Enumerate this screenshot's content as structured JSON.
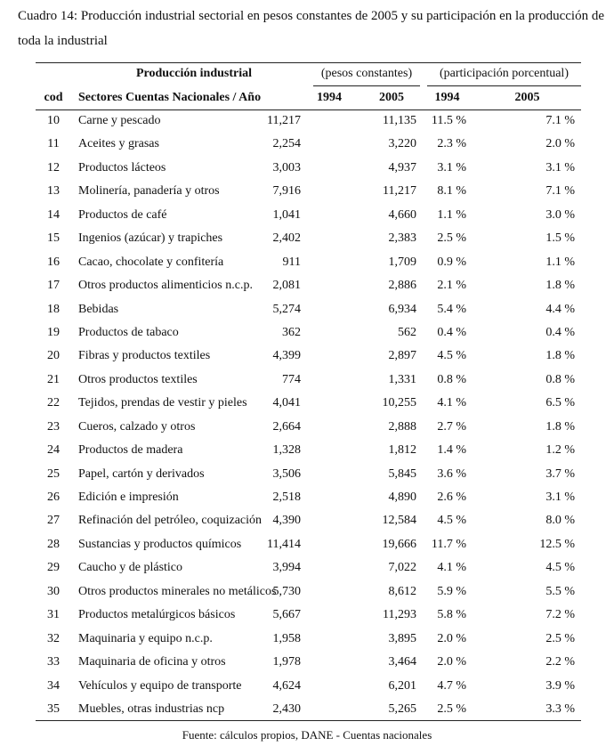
{
  "caption": "Cuadro 14: Producción industrial sectorial en pesos constantes de 2005 y su participación en la producción de toda la industrial",
  "table": {
    "group_headers": [
      "Producción industrial",
      "(pesos constantes)",
      "(participación porcentual)"
    ],
    "headers": [
      "cod",
      "Sectores Cuentas Nacionales / Año",
      "1994",
      "2005",
      "1994",
      "2005"
    ],
    "rows": [
      [
        "10",
        "Carne y pescado",
        "11,217",
        "11,135",
        "11.5 %",
        "7.1 %"
      ],
      [
        "11",
        "Aceites y grasas",
        "2,254",
        "3,220",
        "2.3 %",
        "2.0 %"
      ],
      [
        "12",
        "Productos lácteos",
        "3,003",
        "4,937",
        "3.1 %",
        "3.1 %"
      ],
      [
        "13",
        "Molinería, panadería y otros",
        "7,916",
        "11,217",
        "8.1 %",
        "7.1 %"
      ],
      [
        "14",
        "Productos de café",
        "1,041",
        "4,660",
        "1.1 %",
        "3.0 %"
      ],
      [
        "15",
        "Ingenios (azúcar) y trapiches",
        "2,402",
        "2,383",
        "2.5 %",
        "1.5 %"
      ],
      [
        "16",
        "Cacao, chocolate y confitería",
        "911",
        "1,709",
        "0.9 %",
        "1.1 %"
      ],
      [
        "17",
        "Otros productos alimenticios n.c.p.",
        "2,081",
        "2,886",
        "2.1 %",
        "1.8 %"
      ],
      [
        "18",
        "Bebidas",
        "5,274",
        "6,934",
        "5.4 %",
        "4.4 %"
      ],
      [
        "19",
        "Productos de tabaco",
        "362",
        "562",
        "0.4 %",
        "0.4 %"
      ],
      [
        "20",
        "Fibras y productos textiles",
        "4,399",
        "2,897",
        "4.5 %",
        "1.8 %"
      ],
      [
        "21",
        "Otros productos textiles",
        "774",
        "1,331",
        "0.8 %",
        "0.8 %"
      ],
      [
        "22",
        "Tejidos, prendas de vestir y pieles",
        "4,041",
        "10,255",
        "4.1 %",
        "6.5 %"
      ],
      [
        "23",
        "Cueros, calzado y otros",
        "2,664",
        "2,888",
        "2.7 %",
        "1.8 %"
      ],
      [
        "24",
        "Productos de madera",
        "1,328",
        "1,812",
        "1.4 %",
        "1.2 %"
      ],
      [
        "25",
        "Papel, cartón y derivados",
        "3,506",
        "5,845",
        "3.6 %",
        "3.7 %"
      ],
      [
        "26",
        "Edición e impresión",
        "2,518",
        "4,890",
        "2.6 %",
        "3.1 %"
      ],
      [
        "27",
        "Refinación del petróleo, coquización",
        "4,390",
        "12,584",
        "4.5 %",
        "8.0 %"
      ],
      [
        "28",
        "Sustancias y productos químicos",
        "11,414",
        "19,666",
        "11.7 %",
        "12.5 %"
      ],
      [
        "29",
        "Caucho y de plástico",
        "3,994",
        "7,022",
        "4.1 %",
        "4.5 %"
      ],
      [
        "30",
        "Otros productos minerales no metálicos",
        "5,730",
        "8,612",
        "5.9 %",
        "5.5 %"
      ],
      [
        "31",
        "Productos metalúrgicos básicos",
        "5,667",
        "11,293",
        "5.8 %",
        "7.2 %"
      ],
      [
        "32",
        "Maquinaria y equipo n.c.p.",
        "1,958",
        "3,895",
        "2.0 %",
        "2.5 %"
      ],
      [
        "33",
        "Maquinaria de oficina y otros",
        "1,978",
        "3,464",
        "2.0 %",
        "2.2 %"
      ],
      [
        "34",
        "Vehículos y equipo de transporte",
        "4,624",
        "6,201",
        "4.7 %",
        "3.9 %"
      ],
      [
        "35",
        "Muebles, otras industrias ncp",
        "2,430",
        "5,265",
        "2.5 %",
        "3.3 %"
      ]
    ]
  },
  "source": "Fuente: cálculos propios, DANE - Cuentas nacionales"
}
